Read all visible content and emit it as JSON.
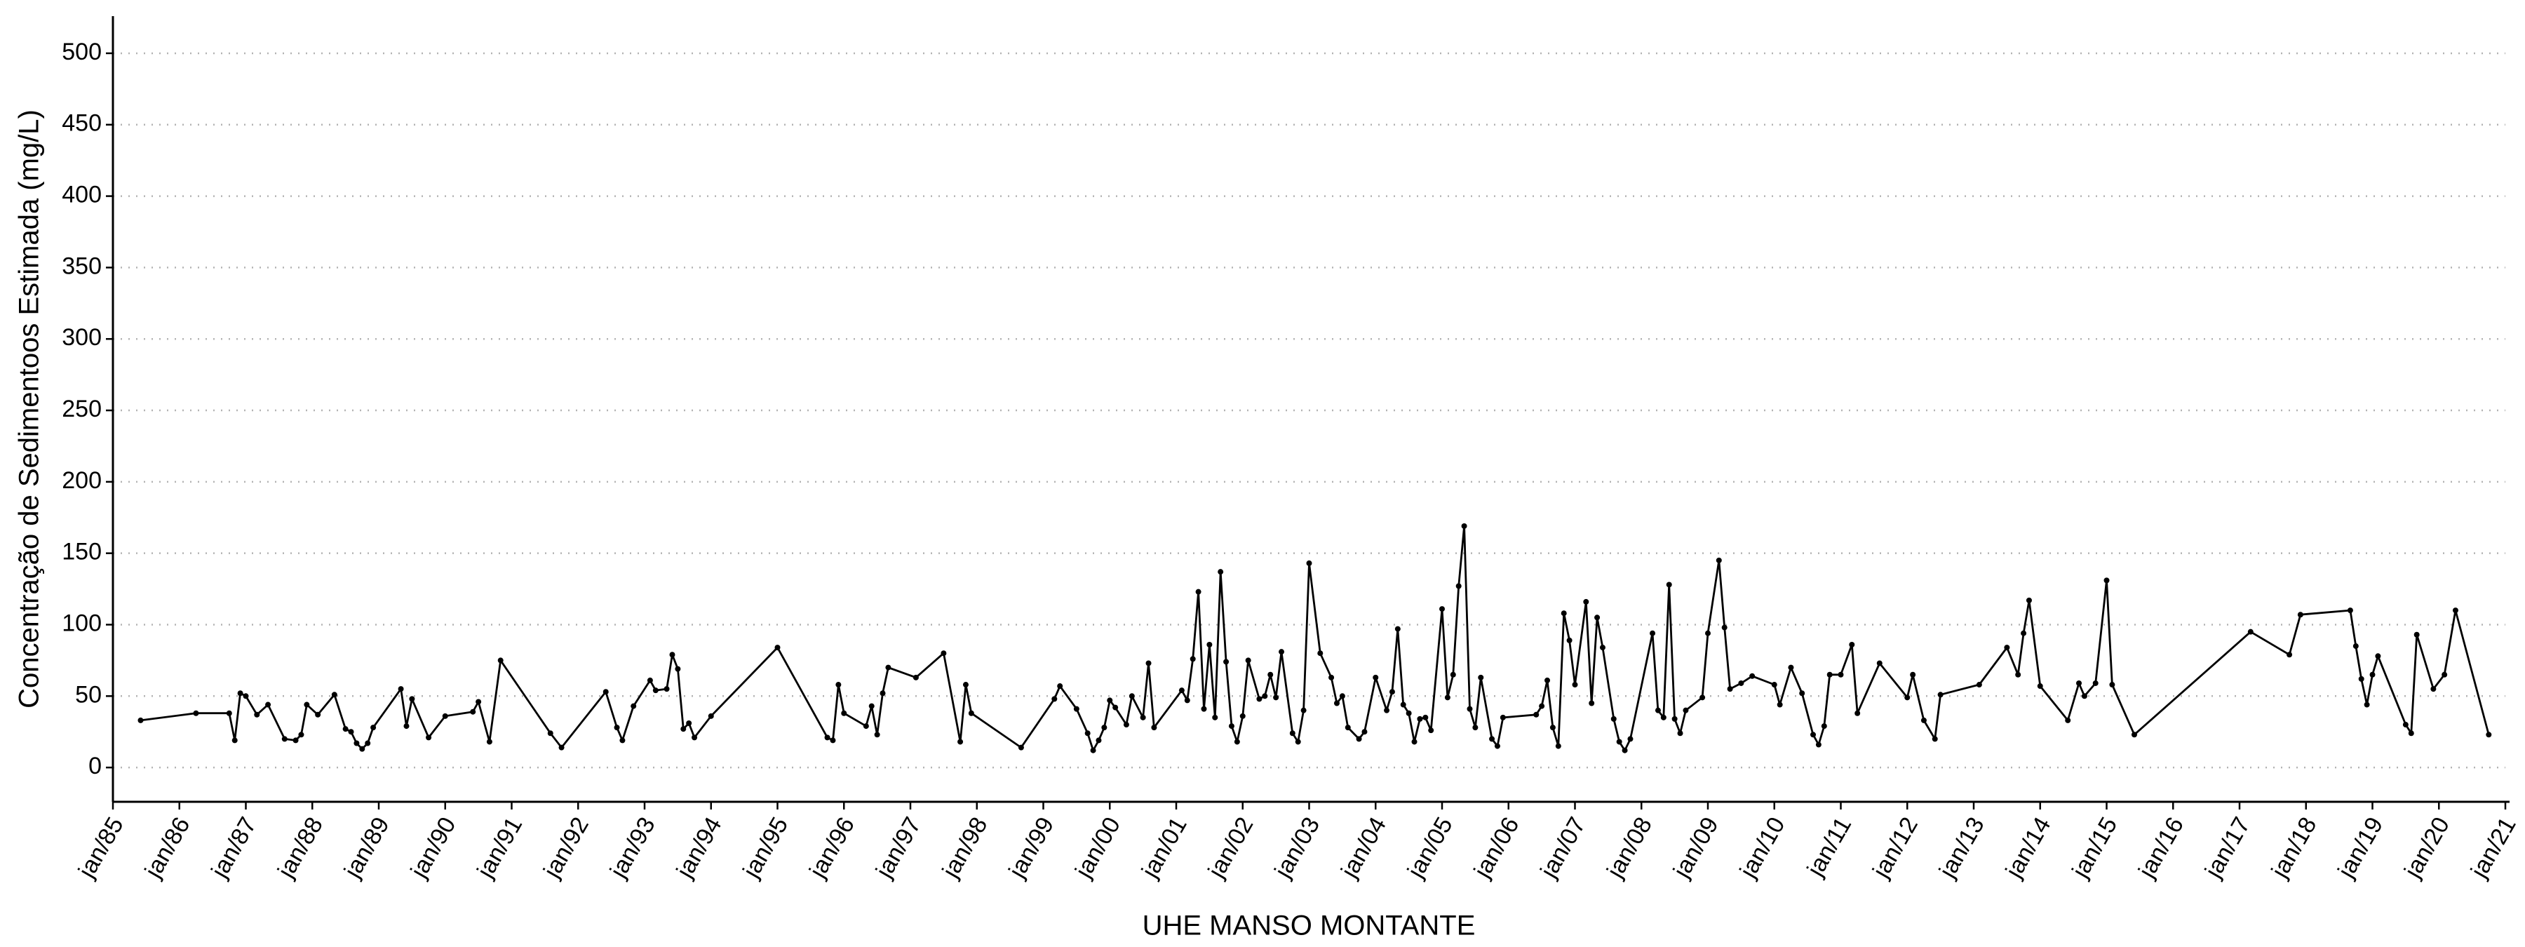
{
  "chart_data": {
    "type": "line",
    "xlabel": "UHE MANSO MONTANTE",
    "ylabel": "Concentração de Sedimentoos Estimada (mg/L)",
    "color": "#000000",
    "grid": true,
    "xlim": [
      "1985-01",
      "2021-01"
    ],
    "ylim": [
      -24,
      526
    ],
    "yticks": [
      0,
      50,
      100,
      150,
      200,
      250,
      300,
      350,
      400,
      450,
      500
    ],
    "xticks": [
      {
        "value": "1985-01",
        "label": "jan/85"
      },
      {
        "value": "1986-01",
        "label": "jan/86"
      },
      {
        "value": "1987-01",
        "label": "jan/87"
      },
      {
        "value": "1988-01",
        "label": "jan/88"
      },
      {
        "value": "1989-01",
        "label": "jan/89"
      },
      {
        "value": "1990-01",
        "label": "jan/90"
      },
      {
        "value": "1991-01",
        "label": "jan/91"
      },
      {
        "value": "1992-01",
        "label": "jan/92"
      },
      {
        "value": "1993-01",
        "label": "jan/93"
      },
      {
        "value": "1994-01",
        "label": "jan/94"
      },
      {
        "value": "1995-01",
        "label": "jan/95"
      },
      {
        "value": "1996-01",
        "label": "jan/96"
      },
      {
        "value": "1997-01",
        "label": "jan/97"
      },
      {
        "value": "1998-01",
        "label": "jan/98"
      },
      {
        "value": "1999-01",
        "label": "jan/99"
      },
      {
        "value": "2000-01",
        "label": "jan/00"
      },
      {
        "value": "2001-01",
        "label": "jan/01"
      },
      {
        "value": "2002-01",
        "label": "jan/02"
      },
      {
        "value": "2003-01",
        "label": "jan/03"
      },
      {
        "value": "2004-01",
        "label": "jan/04"
      },
      {
        "value": "2005-01",
        "label": "jan/05"
      },
      {
        "value": "2006-01",
        "label": "jan/06"
      },
      {
        "value": "2007-01",
        "label": "jan/07"
      },
      {
        "value": "2008-01",
        "label": "jan/08"
      },
      {
        "value": "2009-01",
        "label": "jan/09"
      },
      {
        "value": "2010-01",
        "label": "jan/10"
      },
      {
        "value": "2011-01",
        "label": "jan/11"
      },
      {
        "value": "2012-01",
        "label": "jan/12"
      },
      {
        "value": "2013-01",
        "label": "jan/13"
      },
      {
        "value": "2014-01",
        "label": "jan/14"
      },
      {
        "value": "2015-01",
        "label": "jan/15"
      },
      {
        "value": "2016-01",
        "label": "jan/16"
      },
      {
        "value": "2017-01",
        "label": "jan/17"
      },
      {
        "value": "2018-01",
        "label": "jan/18"
      },
      {
        "value": "2019-01",
        "label": "jan/19"
      },
      {
        "value": "2020-01",
        "label": "jan/20"
      },
      {
        "value": "2021-01",
        "label": "jan/21"
      }
    ],
    "x": [
      "1985-06",
      "1986-04",
      "1986-10",
      "1986-11",
      "1986-12",
      "1987-01",
      "1987-03",
      "1987-05",
      "1987-08",
      "1987-10",
      "1987-11",
      "1987-12",
      "1988-02",
      "1988-05",
      "1988-07",
      "1988-08",
      "1988-09",
      "1988-10",
      "1988-11",
      "1988-12",
      "1989-05",
      "1989-06",
      "1989-07",
      "1989-10",
      "1990-01",
      "1990-06",
      "1990-07",
      "1990-09",
      "1990-11",
      "1991-08",
      "1991-10",
      "1992-06",
      "1992-08",
      "1992-09",
      "1992-11",
      "1993-02",
      "1993-03",
      "1993-05",
      "1993-06",
      "1993-07",
      "1993-08",
      "1993-09",
      "1993-10",
      "1994-01",
      "1995-01",
      "1995-10",
      "1995-11",
      "1995-12",
      "1996-01",
      "1996-05",
      "1996-06",
      "1996-07",
      "1996-08",
      "1996-09",
      "1997-02",
      "1997-07",
      "1997-10",
      "1997-11",
      "1997-12",
      "1998-09",
      "1999-03",
      "1999-04",
      "1999-07",
      "1999-09",
      "1999-10",
      "1999-11",
      "1999-12",
      "2000-01",
      "2000-02",
      "2000-04",
      "2000-05",
      "2000-07",
      "2000-08",
      "2000-09",
      "2001-02",
      "2001-03",
      "2001-04",
      "2001-05",
      "2001-06",
      "2001-07",
      "2001-08",
      "2001-09",
      "2001-10",
      "2001-11",
      "2001-12",
      "2002-01",
      "2002-02",
      "2002-04",
      "2002-05",
      "2002-06",
      "2002-07",
      "2002-08",
      "2002-10",
      "2002-11",
      "2002-12",
      "2003-01",
      "2003-03",
      "2003-05",
      "2003-06",
      "2003-07",
      "2003-08",
      "2003-10",
      "2003-11",
      "2004-01",
      "2004-03",
      "2004-04",
      "2004-05",
      "2004-06",
      "2004-07",
      "2004-08",
      "2004-09",
      "2004-10",
      "2004-11",
      "2005-01",
      "2005-02",
      "2005-03",
      "2005-04",
      "2005-05",
      "2005-06",
      "2005-07",
      "2005-08",
      "2005-10",
      "2005-11",
      "2005-12",
      "2006-06",
      "2006-07",
      "2006-08",
      "2006-09",
      "2006-10",
      "2006-11",
      "2006-12",
      "2007-01",
      "2007-03",
      "2007-04",
      "2007-05",
      "2007-06",
      "2007-08",
      "2007-09",
      "2007-10",
      "2007-11",
      "2008-03",
      "2008-04",
      "2008-05",
      "2008-06",
      "2008-07",
      "2008-08",
      "2008-09",
      "2008-12",
      "2009-01",
      "2009-03",
      "2009-04",
      "2009-05",
      "2009-07",
      "2009-09",
      "2010-01",
      "2010-02",
      "2010-04",
      "2010-06",
      "2010-08",
      "2010-09",
      "2010-10",
      "2010-11",
      "2011-01",
      "2011-03",
      "2011-04",
      "2011-08",
      "2012-01",
      "2012-02",
      "2012-04",
      "2012-06",
      "2012-07",
      "2013-02",
      "2013-07",
      "2013-09",
      "2013-10",
      "2013-11",
      "2014-01",
      "2014-06",
      "2014-08",
      "2014-09",
      "2014-11",
      "2015-01",
      "2015-02",
      "2015-06",
      "2017-03",
      "2017-10",
      "2017-12",
      "2018-09",
      "2018-10",
      "2018-11",
      "2018-12",
      "2019-01",
      "2019-02",
      "2019-07",
      "2019-08",
      "2019-09",
      "2019-12",
      "2020-02",
      "2020-04",
      "2020-10"
    ],
    "values": [
      33,
      38,
      38,
      19,
      52,
      50,
      37,
      44,
      20,
      19,
      23,
      44,
      37,
      51,
      27,
      25,
      17,
      13,
      17,
      28,
      55,
      29,
      48,
      21,
      36,
      39,
      46,
      18,
      75,
      24,
      14,
      53,
      28,
      19,
      43,
      61,
      54,
      55,
      79,
      69,
      27,
      31,
      21,
      36,
      84,
      21,
      19,
      58,
      38,
      29,
      43,
      23,
      52,
      70,
      63,
      80,
      18,
      58,
      38,
      14,
      48,
      57,
      41,
      24,
      12,
      19,
      28,
      47,
      42,
      30,
      50,
      35,
      73,
      28,
      54,
      47,
      76,
      123,
      41,
      86,
      35,
      137,
      74,
      29,
      18,
      36,
      75,
      48,
      50,
      65,
      49,
      81,
      24,
      18,
      40,
      143,
      80,
      63,
      45,
      50,
      28,
      20,
      25,
      63,
      40,
      53,
      97,
      44,
      38,
      18,
      34,
      35,
      26,
      111,
      49,
      65,
      127,
      169,
      41,
      28,
      63,
      20,
      15,
      35,
      37,
      43,
      61,
      28,
      15,
      108,
      89,
      58,
      116,
      45,
      105,
      84,
      34,
      18,
      12,
      20,
      94,
      40,
      35,
      128,
      34,
      24,
      40,
      49,
      94,
      145,
      98,
      55,
      59,
      64,
      58,
      44,
      70,
      52,
      23,
      16,
      29,
      65,
      65,
      86,
      38,
      73,
      49,
      65,
      33,
      20,
      51,
      58,
      84,
      65,
      94,
      117,
      57,
      33,
      59,
      50,
      59,
      131,
      58,
      23,
      95,
      79,
      107,
      110,
      85,
      62,
      44,
      65,
      78,
      30,
      24,
      93,
      55,
      65,
      110,
      23
    ]
  }
}
